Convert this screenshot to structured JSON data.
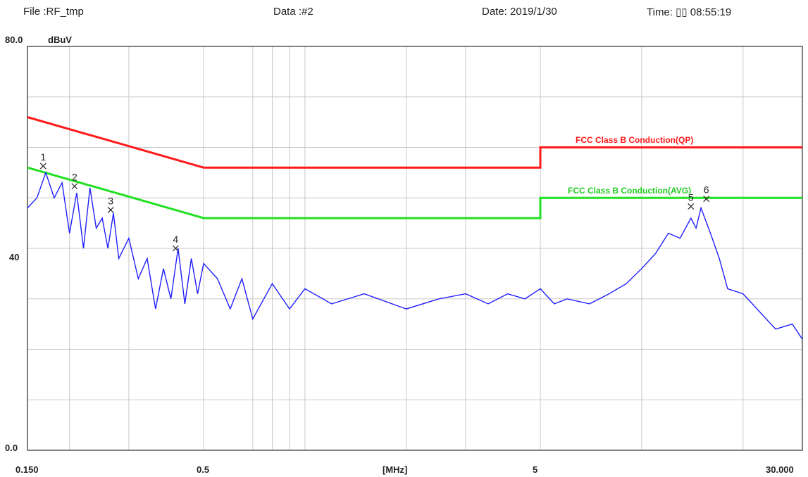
{
  "header": {
    "file": "File :RF_tmp",
    "data": "Data :#2",
    "date": "Date: 2019/1/30",
    "time": "Time: ▯▯ 08:55:19"
  },
  "chart_data": {
    "type": "line",
    "ylabel": "dBuV",
    "xlabel": "[MHz]",
    "x_scale": "log",
    "xlim": [
      0.15,
      30
    ],
    "ylim": [
      0,
      80
    ],
    "y_tick_labels": [
      "80.0",
      "40",
      "0.0"
    ],
    "x_tick_labels": [
      "0.150",
      "0.5",
      "[MHz]",
      "5",
      "30.000"
    ],
    "grid": true,
    "colors": {
      "qp_limit": "#ff1a1a",
      "avg_limit": "#22e022",
      "trace": "#1f1fff",
      "grid": "#c8c8c8"
    },
    "limits": [
      {
        "name": "FCC Class B Conduction(QP)",
        "x": [
          0.15,
          0.5,
          5,
          5,
          30
        ],
        "y": [
          66,
          56,
          56,
          60,
          60
        ]
      },
      {
        "name": "FCC Class B Conduction(AVG)",
        "x": [
          0.15,
          0.5,
          5,
          5,
          30
        ],
        "y": [
          56,
          46,
          46,
          50,
          50
        ]
      }
    ],
    "trace": {
      "x": [
        0.15,
        0.16,
        0.17,
        0.18,
        0.19,
        0.2,
        0.21,
        0.22,
        0.23,
        0.24,
        0.25,
        0.26,
        0.27,
        0.28,
        0.3,
        0.32,
        0.34,
        0.36,
        0.38,
        0.4,
        0.42,
        0.44,
        0.46,
        0.48,
        0.5,
        0.55,
        0.6,
        0.65,
        0.7,
        0.8,
        0.9,
        1.0,
        1.2,
        1.5,
        2.0,
        2.5,
        3.0,
        3.5,
        4.0,
        4.5,
        5.0,
        5.5,
        6.0,
        7.0,
        8.0,
        9.0,
        10.0,
        11.0,
        12.0,
        13.0,
        14.0,
        14.5,
        15.0,
        16.0,
        17.0,
        18.0,
        20.0,
        22.0,
        25.0,
        28.0,
        30.0
      ],
      "y": [
        48,
        50,
        55,
        50,
        53,
        43,
        51,
        40,
        52,
        44,
        46,
        40,
        47,
        38,
        42,
        34,
        38,
        28,
        36,
        30,
        40,
        29,
        38,
        31,
        37,
        34,
        28,
        34,
        26,
        33,
        28,
        32,
        29,
        31,
        28,
        30,
        31,
        29,
        31,
        30,
        32,
        29,
        30,
        29,
        31,
        33,
        36,
        39,
        43,
        42,
        46,
        44,
        48,
        43,
        38,
        32,
        31,
        28,
        24,
        25,
        22
      ]
    },
    "markers": [
      {
        "id": "1",
        "x": 0.167,
        "y": 56.3
      },
      {
        "id": "2",
        "x": 0.207,
        "y": 52.3
      },
      {
        "id": "3",
        "x": 0.265,
        "y": 47.6
      },
      {
        "id": "4",
        "x": 0.413,
        "y": 40.0
      },
      {
        "id": "5",
        "x": 14.0,
        "y": 48.3
      },
      {
        "id": "6",
        "x": 15.56,
        "y": 49.8
      }
    ]
  }
}
